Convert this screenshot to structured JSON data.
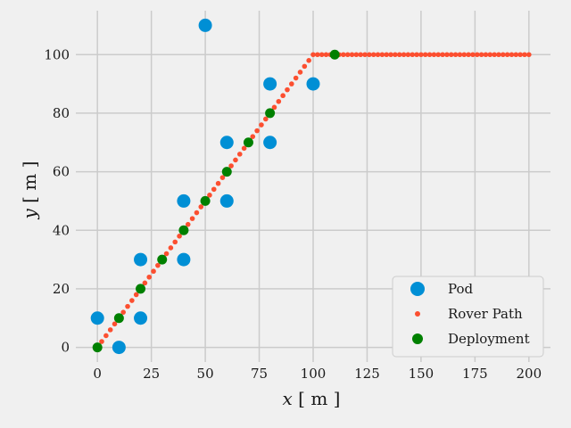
{
  "chart_data": {
    "type": "scatter",
    "title": "",
    "xlabel_var": "x",
    "xlabel_unit": "[ m ]",
    "ylabel_var": "y",
    "ylabel_unit": "[ m ]",
    "xlim": [
      -10,
      210
    ],
    "ylim": [
      -5,
      115
    ],
    "xticks": [
      0,
      25,
      50,
      75,
      100,
      125,
      150,
      175,
      200
    ],
    "yticks": [
      0,
      20,
      40,
      60,
      80,
      100
    ],
    "grid": true,
    "legend_position": "lower-right",
    "colors": {
      "background": "#f0f0f0",
      "grid": "#cbcbcb",
      "pod": "#008fd5",
      "rover_path": "#fc4f30",
      "deployment": "#008000"
    },
    "series": [
      {
        "name": "Pod",
        "marker": "large-circle",
        "points": [
          [
            0,
            10
          ],
          [
            10,
            0
          ],
          [
            20,
            10
          ],
          [
            20,
            30
          ],
          [
            40,
            30
          ],
          [
            40,
            50
          ],
          [
            50,
            110
          ],
          [
            60,
            50
          ],
          [
            60,
            70
          ],
          [
            80,
            70
          ],
          [
            80,
            90
          ],
          [
            100,
            90
          ]
        ]
      },
      {
        "name": "Rover Path",
        "marker": "small-circle",
        "description": "straight diagonal from (0,0) to (100,100), then horizontal at y=100 to x=200",
        "segments": [
          {
            "from": [
              0,
              0
            ],
            "to": [
              100,
              100
            ],
            "spacing": 2
          },
          {
            "from": [
              100,
              100
            ],
            "to": [
              200,
              100
            ],
            "spacing": 2
          }
        ]
      },
      {
        "name": "Deployment",
        "marker": "medium-circle",
        "points": [
          [
            0,
            0
          ],
          [
            10,
            10
          ],
          [
            20,
            20
          ],
          [
            30,
            30
          ],
          [
            40,
            40
          ],
          [
            50,
            50
          ],
          [
            60,
            60
          ],
          [
            70,
            70
          ],
          [
            80,
            80
          ],
          [
            110,
            100
          ]
        ]
      }
    ]
  }
}
